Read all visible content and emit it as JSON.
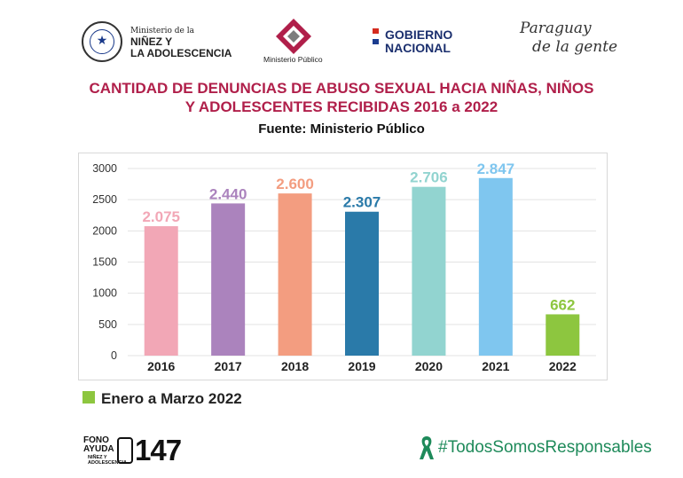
{
  "header": {
    "ministry_small": "Ministerio de la",
    "ministry_line1": "NIÑEZ Y",
    "ministry_line2": "LA ADOLESCENCIA",
    "seal_text": "REPUBLICA DEL PARAGUAY",
    "mp_label": "Ministerio Público",
    "gobierno_line1": "GOBIERNO",
    "gobierno_line2": "NACIONAL",
    "paraguay_line1": "Paraguay",
    "paraguay_line2": "de la gente"
  },
  "chart_data": {
    "type": "bar",
    "title_line1": "CANTIDAD DE DENUNCIAS DE ABUSO SEXUAL HACIA NIÑAS, NIÑOS",
    "title_line2": "Y ADOLESCENTES RECIBIDAS 2016 a 2022",
    "subtitle": "Fuente: Ministerio Público",
    "categories": [
      "2016",
      "2017",
      "2018",
      "2019",
      "2020",
      "2021",
      "2022"
    ],
    "values": [
      2075,
      2440,
      2600,
      2307,
      2706,
      2847,
      662
    ],
    "data_labels": [
      "2.075",
      "2.440",
      "2.600",
      "2.307",
      "2.706",
      "2.847",
      "662"
    ],
    "colors": [
      "#f2a7b6",
      "#ab83bd",
      "#f39d80",
      "#2a7aa9",
      "#92d4d0",
      "#7fc6ef",
      "#8dc63f"
    ],
    "yticks": [
      0,
      500,
      1000,
      1500,
      2000,
      2500,
      3000
    ],
    "ylim": [
      0,
      3000
    ],
    "grid": true,
    "legend": "Enero a Marzo 2022",
    "legend_color": "#8dc63f"
  },
  "footer": {
    "fono_line1": "FONO",
    "fono_line2": "AYUDA",
    "fono_line3": "NIÑEZ Y",
    "fono_line4": "ADOLESCENCIA",
    "number": "147",
    "hashtag": "#TodosSomosResponsables"
  },
  "colors": {
    "title": "#b01f4a",
    "gobierno": "#1b2f6e",
    "hashtag": "#1e8a5a",
    "grid": "#e3e3e3"
  }
}
